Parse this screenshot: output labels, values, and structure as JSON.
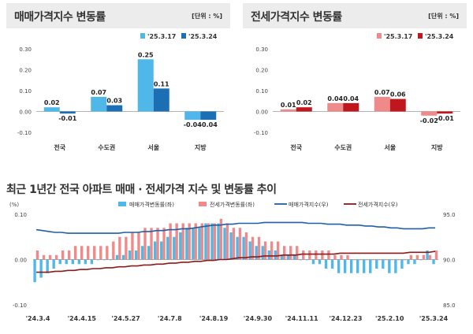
{
  "panels": {
    "sale": {
      "title": "매매가격지수 변동률",
      "unit": "[단위 : %]"
    },
    "jeonse": {
      "title": "전세가격지수 변동률",
      "unit": "[단위 : %]"
    },
    "trend": {
      "title": "최근 1년간 전국 아파트 매매 · 전세가격 지수 및 변동률 추이"
    }
  },
  "colors": {
    "sale_light": "#4fb8e8",
    "sale_dark": "#1c6fb5",
    "jeonse_light": "#f08a8a",
    "jeonse_dark": "#c0161d",
    "sale_line": "#1f5fa8",
    "jeonse_line": "#8b1a1a"
  },
  "chart_data": [
    {
      "type": "bar",
      "title": "매매가격지수 변동률",
      "categories": [
        "전국",
        "수도권",
        "서울",
        "지방"
      ],
      "series": [
        {
          "name": "'25.3.17",
          "values": [
            0.02,
            0.07,
            0.25,
            -0.04
          ]
        },
        {
          "name": "'25.3.24",
          "values": [
            -0.01,
            0.03,
            0.11,
            -0.04
          ]
        }
      ],
      "value_labels": [
        [
          "0.02",
          "0.07",
          "0.25",
          "-0.04"
        ],
        [
          "-0.01",
          "0.03",
          "0.11",
          "-0.04"
        ]
      ],
      "ylim": [
        -0.1,
        0.3
      ],
      "yticks": [
        "0.30",
        "0.20",
        "0.10",
        "0.00",
        "-0.10"
      ],
      "grid": false,
      "legend": "top-right"
    },
    {
      "type": "bar",
      "title": "전세가격지수 변동률",
      "categories": [
        "전국",
        "수도권",
        "서울",
        "지방"
      ],
      "series": [
        {
          "name": "'25.3.17",
          "values": [
            0.01,
            0.04,
            0.07,
            -0.02
          ]
        },
        {
          "name": "'25.3.24",
          "values": [
            0.02,
            0.04,
            0.06,
            -0.01
          ]
        }
      ],
      "value_labels": [
        [
          "0.01",
          "0.04",
          "0.07",
          "-0.02"
        ],
        [
          "0.02",
          "0.04",
          "0.06",
          "-0.01"
        ]
      ],
      "ylim": [
        -0.1,
        0.3
      ],
      "yticks": [
        "0.30",
        "0.20",
        "0.10",
        "0.00",
        "-0.10"
      ],
      "grid": false,
      "legend": "top-right"
    },
    {
      "type": "bar",
      "title": "최근 1년간 전국 아파트 매매 · 전세가격 지수 및 변동률 추이",
      "ylabel": "(%)",
      "ylim_left": [
        -0.1,
        0.1
      ],
      "yticks_left": [
        "0.10",
        "0.00",
        "-0.10"
      ],
      "ylim_right": [
        85.0,
        95.0
      ],
      "yticks_right": [
        "95.0",
        "90.0",
        "85.0"
      ],
      "x_tick_labels": [
        "'24.3.4",
        "'24.4.15",
        "'24.5.27",
        "'24.7.8",
        "'24.8.19",
        "'24.9.30",
        "'24.11.11",
        "'24.12.23",
        "'25.2.10",
        "'25.3.24"
      ],
      "legend": "top-center",
      "series": [
        {
          "name": "매매가격변동률(좌)",
          "kind": "bar",
          "values": [
            -0.05,
            -0.04,
            -0.03,
            -0.02,
            -0.01,
            -0.01,
            -0.01,
            -0.01,
            -0.01,
            -0.01,
            0.0,
            0.0,
            0.0,
            0.01,
            0.01,
            0.02,
            0.02,
            0.03,
            0.03,
            0.04,
            0.04,
            0.05,
            0.05,
            0.06,
            0.07,
            0.07,
            0.07,
            0.08,
            0.08,
            0.08,
            0.07,
            0.06,
            0.05,
            0.05,
            0.04,
            0.03,
            0.03,
            0.02,
            0.02,
            0.01,
            0.01,
            0.01,
            0.0,
            0.0,
            -0.01,
            -0.01,
            -0.02,
            -0.02,
            -0.03,
            -0.03,
            -0.03,
            -0.03,
            -0.03,
            -0.03,
            -0.02,
            -0.02,
            -0.03,
            -0.03,
            -0.02,
            -0.01,
            -0.01,
            0.0,
            0.02,
            -0.01
          ]
        },
        {
          "name": "전세가격변동률(좌)",
          "kind": "bar",
          "values": [
            0.02,
            0.01,
            0.01,
            0.01,
            0.02,
            0.02,
            0.03,
            0.03,
            0.03,
            0.03,
            0.03,
            0.03,
            0.04,
            0.05,
            0.05,
            0.06,
            0.06,
            0.07,
            0.07,
            0.07,
            0.07,
            0.08,
            0.08,
            0.08,
            0.08,
            0.08,
            0.08,
            0.08,
            0.08,
            0.09,
            0.08,
            0.07,
            0.07,
            0.06,
            0.05,
            0.05,
            0.04,
            0.04,
            0.04,
            0.03,
            0.03,
            0.03,
            0.02,
            0.02,
            0.02,
            0.02,
            0.02,
            0.01,
            0.01,
            0.01,
            0.0,
            0.0,
            0.0,
            0.0,
            0.0,
            0.0,
            0.0,
            0.0,
            0.0,
            0.01,
            0.01,
            0.01,
            0.01,
            0.02
          ]
        },
        {
          "name": "매매가격지수(우)",
          "kind": "line",
          "values": [
            93.3,
            93.2,
            93.1,
            93.0,
            93.0,
            92.9,
            92.9,
            92.9,
            92.9,
            92.9,
            92.9,
            92.9,
            92.9,
            92.9,
            93.0,
            93.0,
            93.0,
            93.1,
            93.1,
            93.2,
            93.2,
            93.3,
            93.3,
            93.4,
            93.4,
            93.5,
            93.6,
            93.7,
            93.8,
            93.8,
            93.9,
            93.9,
            94.0,
            94.0,
            94.0,
            94.0,
            94.1,
            94.1,
            94.1,
            94.1,
            94.1,
            94.1,
            94.1,
            94.0,
            94.0,
            94.0,
            93.9,
            93.9,
            93.9,
            93.8,
            93.8,
            93.8,
            93.7,
            93.7,
            93.6,
            93.6,
            93.5,
            93.5,
            93.4,
            93.4,
            93.4,
            93.4,
            93.5,
            93.5
          ]
        },
        {
          "name": "전세가격지수(우)",
          "kind": "line",
          "values": [
            88.6,
            88.6,
            88.6,
            88.7,
            88.7,
            88.8,
            88.8,
            88.9,
            88.9,
            89.0,
            89.0,
            89.1,
            89.1,
            89.2,
            89.2,
            89.3,
            89.3,
            89.4,
            89.4,
            89.5,
            89.5,
            89.6,
            89.6,
            89.7,
            89.7,
            89.8,
            89.8,
            89.9,
            89.9,
            90.0,
            90.0,
            90.1,
            90.2,
            90.2,
            90.3,
            90.3,
            90.4,
            90.4,
            90.4,
            90.5,
            90.5,
            90.5,
            90.6,
            90.6,
            90.6,
            90.6,
            90.6,
            90.6,
            90.7,
            90.7,
            90.7,
            90.7,
            90.7,
            90.7,
            90.7,
            90.7,
            90.7,
            90.7,
            90.7,
            90.8,
            90.8,
            90.8,
            90.8,
            90.9
          ]
        }
      ]
    }
  ]
}
